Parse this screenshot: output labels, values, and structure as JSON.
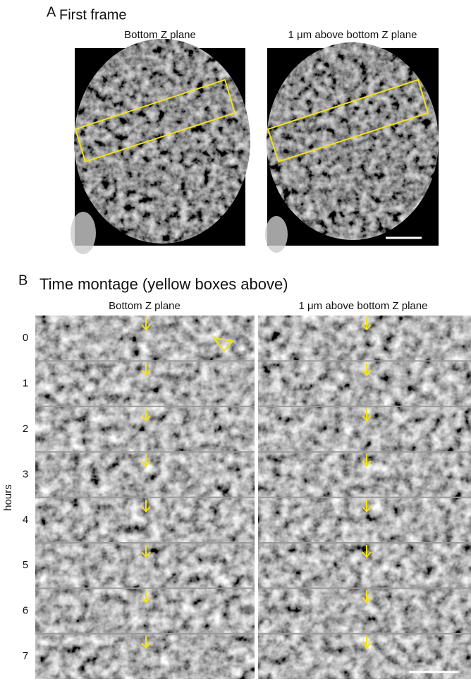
{
  "panel_a": {
    "label": "A",
    "title": "First frame",
    "columns": [
      "Bottom Z plane",
      "1 μm above bottom Z plane"
    ]
  },
  "panel_b": {
    "label": "B",
    "title": "Time montage (yellow boxes above)",
    "columns": [
      "Bottom Z plane",
      "1 μm above bottom Z plane"
    ],
    "row_labels": [
      "0",
      "1",
      "2",
      "3",
      "4",
      "5",
      "6",
      "7"
    ],
    "axis_label": "hours"
  }
}
